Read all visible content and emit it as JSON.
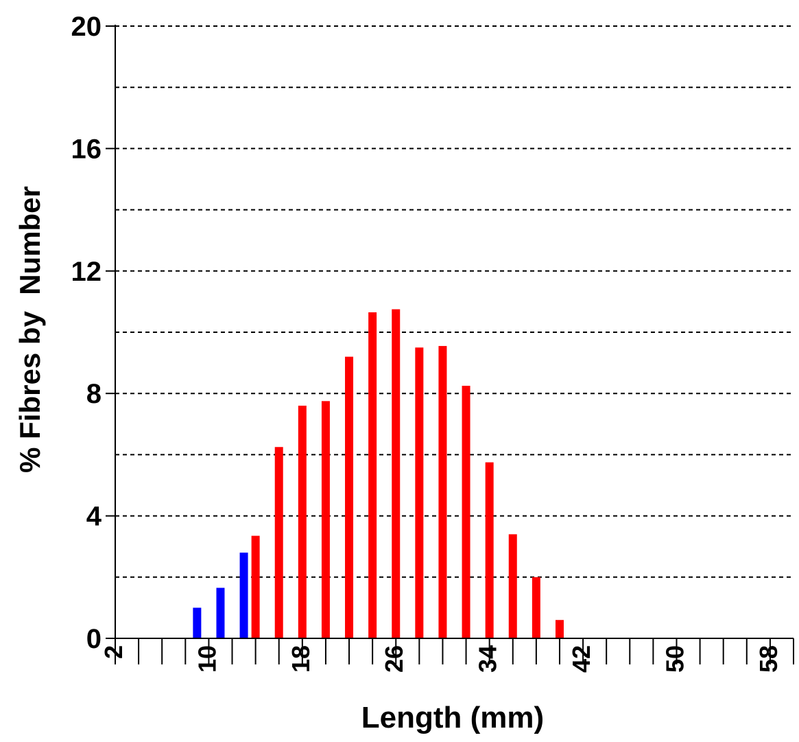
{
  "chart_data": {
    "type": "bar",
    "title": "",
    "xlabel": "Length (mm)",
    "ylabel": "% Fibres by  Number",
    "ylim": [
      0,
      20
    ],
    "yticks": [
      0,
      4,
      8,
      12,
      16,
      20
    ],
    "y_gridlines": [
      2,
      4,
      6,
      8,
      10,
      12,
      14,
      16,
      18,
      20
    ],
    "xlim": [
      2,
      60
    ],
    "xticks": [
      2,
      10,
      18,
      26,
      34,
      42,
      50,
      58
    ],
    "grid": "horizontal dashed",
    "series_colors": [
      "#0000ff",
      "#ff0000"
    ],
    "x": [
      9,
      11,
      13,
      14,
      16,
      18,
      20,
      22,
      24,
      26,
      28,
      30,
      32,
      34,
      36,
      38,
      40
    ],
    "values": [
      1.0,
      1.65,
      2.8,
      3.35,
      6.25,
      7.6,
      7.75,
      9.2,
      10.65,
      10.75,
      9.5,
      9.55,
      8.25,
      5.75,
      3.4,
      2.0,
      0.6
    ],
    "colors": [
      "#0000ff",
      "#0000ff",
      "#0000ff",
      "#ff0000",
      "#ff0000",
      "#ff0000",
      "#ff0000",
      "#ff0000",
      "#ff0000",
      "#ff0000",
      "#ff0000",
      "#ff0000",
      "#ff0000",
      "#ff0000",
      "#ff0000",
      "#ff0000",
      "#ff0000"
    ]
  }
}
